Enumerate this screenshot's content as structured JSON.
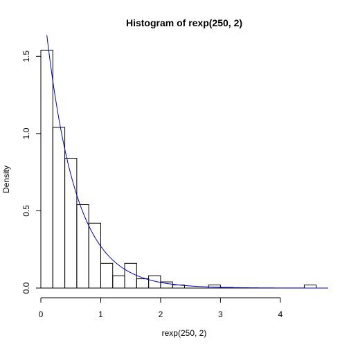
{
  "chart_data": {
    "type": "bar",
    "title": "Histogram of rexp(250, 2)",
    "xlabel": "rexp(250, 2)",
    "ylabel": "Density",
    "xlim": [
      0,
      4.8
    ],
    "ylim": [
      0,
      1.6
    ],
    "x_ticks": [
      0,
      1,
      2,
      3,
      4
    ],
    "x_tick_labels": [
      "0",
      "1",
      "2",
      "3",
      "4"
    ],
    "y_ticks": [
      0.0,
      0.5,
      1.0,
      1.5
    ],
    "y_tick_labels": [
      "0.0",
      "0.5",
      "1.0",
      "1.5"
    ],
    "bin_width": 0.2,
    "bins": [
      {
        "start": 0.0,
        "end": 0.2,
        "density": 1.54
      },
      {
        "start": 0.2,
        "end": 0.4,
        "density": 1.04
      },
      {
        "start": 0.4,
        "end": 0.6,
        "density": 0.84
      },
      {
        "start": 0.6,
        "end": 0.8,
        "density": 0.54
      },
      {
        "start": 0.8,
        "end": 1.0,
        "density": 0.42
      },
      {
        "start": 1.0,
        "end": 1.2,
        "density": 0.16
      },
      {
        "start": 1.2,
        "end": 1.4,
        "density": 0.08
      },
      {
        "start": 1.4,
        "end": 1.6,
        "density": 0.16
      },
      {
        "start": 1.6,
        "end": 1.8,
        "density": 0.06
      },
      {
        "start": 1.8,
        "end": 2.0,
        "density": 0.08
      },
      {
        "start": 2.0,
        "end": 2.2,
        "density": 0.04
      },
      {
        "start": 2.2,
        "end": 2.4,
        "density": 0.02
      },
      {
        "start": 2.8,
        "end": 3.0,
        "density": 0.02
      },
      {
        "start": 3.0,
        "end": 3.2,
        "density": 0.004
      },
      {
        "start": 4.4,
        "end": 4.6,
        "density": 0.02
      }
    ],
    "curve": {
      "function": "2*exp(-2*x)",
      "x_from": 0.1,
      "x_to": 4.8,
      "color": "#0000cc"
    },
    "grid": false
  }
}
